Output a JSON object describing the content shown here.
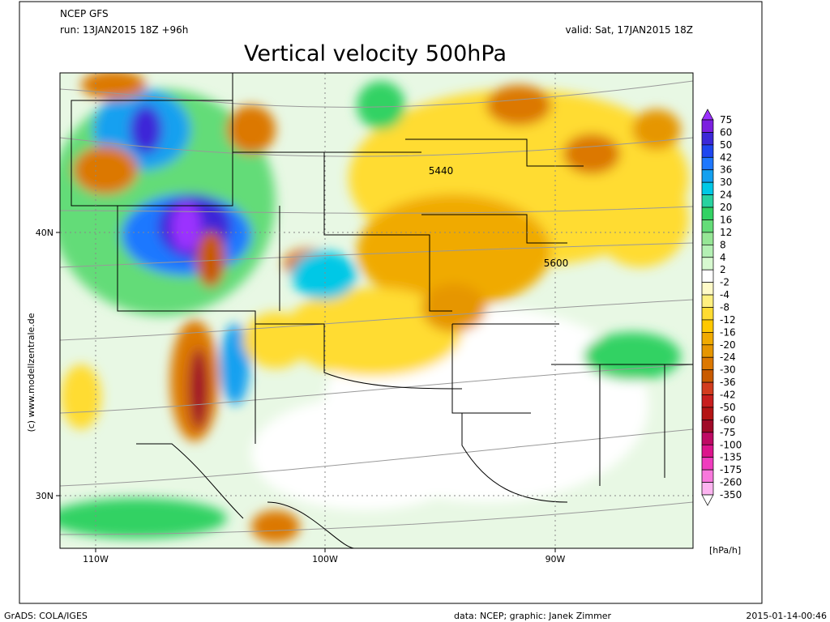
{
  "header": {
    "model": "NCEP GFS",
    "run": "run: 13JAN2015 18Z +96h",
    "valid": "valid: Sat, 17JAN2015 18Z",
    "title": "Vertical velocity 500hPa"
  },
  "map": {
    "lat_labels": [
      "40N",
      "30N"
    ],
    "lon_labels": [
      "110W",
      "100W",
      "90W"
    ],
    "contour_labels": [
      "5440",
      "5600"
    ],
    "copyright": "(c) www.modellzentrale.de"
  },
  "colorbar": {
    "unit": "[hPa/h]",
    "levels": [
      75,
      60,
      50,
      42,
      36,
      30,
      24,
      20,
      16,
      12,
      8,
      4,
      2,
      -2,
      -4,
      -8,
      -12,
      -16,
      -20,
      -24,
      -30,
      -36,
      -42,
      -50,
      -60,
      -75,
      -100,
      -135,
      -175,
      -260,
      -350
    ],
    "colors": [
      "#9b30ff",
      "#7b1fe0",
      "#3c28d8",
      "#1e46f0",
      "#1e78ff",
      "#14a0f0",
      "#00c8e6",
      "#28d2a0",
      "#32d264",
      "#64dc78",
      "#96e696",
      "#b4f0b4",
      "#d7f9d0",
      "#ffffff",
      "#fffac8",
      "#fff080",
      "#ffdc32",
      "#ffc800",
      "#f0aa00",
      "#e69600",
      "#dc7800",
      "#c85a00",
      "#d23c1e",
      "#c81e1e",
      "#b41414",
      "#a00a28",
      "#be0a64",
      "#dc148c",
      "#f03cbe",
      "#f878dc",
      "#fcb4f0",
      "#ffffff"
    ]
  },
  "footer": {
    "left": "GrADS: COLA/IGES",
    "center": "data: NCEP; graphic: Janek Zimmer",
    "right": "2015-01-14-00:46"
  }
}
